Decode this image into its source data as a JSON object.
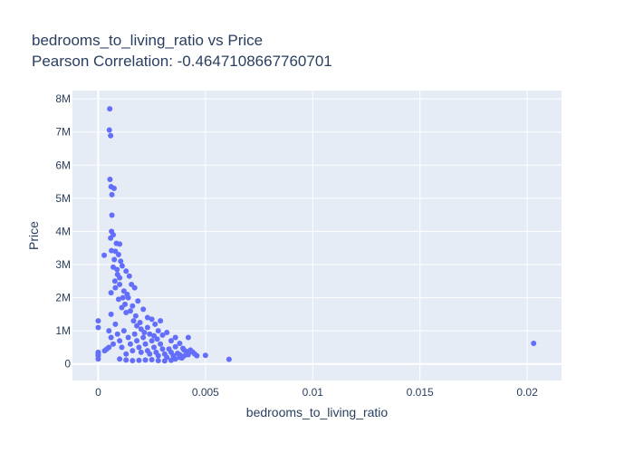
{
  "chart_data": {
    "type": "scatter",
    "title_line1": "bedrooms_to_living_ratio vs Price",
    "title_line2": "Pearson Correlation: -0.4647108667760701",
    "xlabel": "bedrooms_to_living_ratio",
    "ylabel": "Price",
    "xlim": [
      -0.0012,
      0.0216
    ],
    "ylim": [
      -500000,
      8250000
    ],
    "x_ticks": [
      0,
      0.005,
      0.01,
      0.015,
      0.02
    ],
    "x_tick_labels": [
      "0",
      "0.005",
      "0.01",
      "0.015",
      "0.02"
    ],
    "y_ticks": [
      0,
      1000000,
      2000000,
      3000000,
      4000000,
      5000000,
      6000000,
      7000000,
      8000000
    ],
    "y_tick_labels": [
      "0",
      "1M",
      "2M",
      "3M",
      "4M",
      "5M",
      "6M",
      "7M",
      "8M"
    ],
    "grid": true,
    "colors": {
      "marker": "#636efa",
      "plot_bg": "#e5ecf6",
      "grid": "#ffffff",
      "text": "#2a3f5f"
    },
    "series": [
      {
        "values": [
          [
            0.00054,
            7700000
          ],
          [
            0.00052,
            7060000
          ],
          [
            0.00058,
            6890000
          ],
          [
            0.00055,
            5570000
          ],
          [
            0.0006,
            5350000
          ],
          [
            0.00074,
            5300000
          ],
          [
            0.00064,
            5110000
          ],
          [
            0.00064,
            4490000
          ],
          [
            0.00062,
            4000000
          ],
          [
            0.0007,
            3900000
          ],
          [
            0.00058,
            3800000
          ],
          [
            0.00085,
            3640000
          ],
          [
            0.001,
            3620000
          ],
          [
            0.00062,
            3420000
          ],
          [
            0.0008,
            3400000
          ],
          [
            0.00028,
            3280000
          ],
          [
            0.00095,
            3300000
          ],
          [
            0.00075,
            3150000
          ],
          [
            0.00105,
            3100000
          ],
          [
            0.00112,
            2960000
          ],
          [
            0.0007,
            2920000
          ],
          [
            0.00088,
            2850000
          ],
          [
            0.0013,
            2800000
          ],
          [
            0.00145,
            2650000
          ],
          [
            0.001,
            2600000
          ],
          [
            0.00078,
            2500000
          ],
          [
            0.00155,
            2400000
          ],
          [
            0.0017,
            2300000
          ],
          [
            0.0012,
            2200000
          ],
          [
            0.0006,
            2150000
          ],
          [
            0.0014,
            2000000
          ],
          [
            0.00095,
            1950000
          ],
          [
            0.00185,
            1900000
          ],
          [
            0.0016,
            1750000
          ],
          [
            0.0011,
            1700000
          ],
          [
            0.0021,
            1650000
          ],
          [
            0.0013,
            1550000
          ],
          [
            0.0023,
            1400000
          ],
          [
            0.00175,
            1450000
          ],
          [
            0.0025,
            1350000
          ],
          [
            0.0029,
            1300000
          ],
          [
            0.00265,
            1200000
          ],
          [
            0.00195,
            1250000
          ],
          [
            0.0023,
            1100000
          ],
          [
            0.0028,
            1000000
          ],
          [
            0.0032,
            950000
          ],
          [
            0.003,
            870000
          ],
          [
            0.0036,
            800000
          ],
          [
            0.0042,
            800000
          ],
          [
            0.0034,
            700000
          ],
          [
            0.0038,
            620000
          ],
          [
            0.0036,
            520000
          ],
          [
            0.00395,
            470000
          ],
          [
            0.004,
            420000
          ],
          [
            0.0041,
            380000
          ],
          [
            0.0043,
            420000
          ],
          [
            0.0044,
            360000
          ],
          [
            0.0045,
            300000
          ],
          [
            0.0042,
            280000
          ],
          [
            0.004,
            240000
          ],
          [
            0.0038,
            200000
          ],
          [
            0.0046,
            250000
          ],
          [
            0.005,
            260000
          ],
          [
            0.0061,
            140000
          ],
          [
            0.0203,
            620000
          ],
          [
            0.0,
            1300000
          ],
          [
            0.0,
            1100000
          ],
          [
            0.0,
            350000
          ],
          [
            0.0,
            300000
          ],
          [
            0.0,
            250000
          ],
          [
            0.0,
            150000
          ],
          [
            0.0003,
            400000
          ],
          [
            0.0004,
            450000
          ],
          [
            0.0005,
            500000
          ],
          [
            0.0005,
            1000000
          ],
          [
            0.0006,
            1500000
          ],
          [
            0.0006,
            800000
          ],
          [
            0.0007,
            600000
          ],
          [
            0.0008,
            1200000
          ],
          [
            0.0009,
            900000
          ],
          [
            0.001,
            700000
          ],
          [
            0.0011,
            500000
          ],
          [
            0.0012,
            1000000
          ],
          [
            0.0013,
            300000
          ],
          [
            0.0014,
            800000
          ],
          [
            0.0015,
            600000
          ],
          [
            0.0016,
            400000
          ],
          [
            0.0017,
            900000
          ],
          [
            0.0018,
            700000
          ],
          [
            0.0019,
            500000
          ],
          [
            0.002,
            350000
          ],
          [
            0.0021,
            800000
          ],
          [
            0.0022,
            600000
          ],
          [
            0.0023,
            400000
          ],
          [
            0.0024,
            300000
          ],
          [
            0.0025,
            700000
          ],
          [
            0.0026,
            500000
          ],
          [
            0.0027,
            350000
          ],
          [
            0.0028,
            250000
          ],
          [
            0.0029,
            600000
          ],
          [
            0.003,
            450000
          ],
          [
            0.0031,
            300000
          ],
          [
            0.0032,
            200000
          ],
          [
            0.0033,
            450000
          ],
          [
            0.0034,
            350000
          ],
          [
            0.0035,
            250000
          ],
          [
            0.0036,
            150000
          ],
          [
            0.0037,
            320000
          ],
          [
            0.0038,
            280000
          ],
          [
            0.0039,
            180000
          ],
          [
            0.001,
            150000
          ],
          [
            0.0013,
            120000
          ],
          [
            0.0016,
            100000
          ],
          [
            0.0019,
            110000
          ],
          [
            0.0022,
            120000
          ],
          [
            0.0025,
            130000
          ],
          [
            0.0028,
            100000
          ],
          [
            0.0031,
            90000
          ],
          [
            0.0034,
            110000
          ],
          [
            0.0008,
            2300000
          ],
          [
            0.0009,
            2700000
          ],
          [
            0.001,
            2400000
          ],
          [
            0.00115,
            2000000
          ],
          [
            0.00125,
            1800000
          ],
          [
            0.00135,
            2100000
          ],
          [
            0.0015,
            1600000
          ],
          [
            0.00165,
            1300000
          ],
          [
            0.0018,
            1150000
          ],
          [
            0.002,
            1050000
          ],
          [
            0.00215,
            950000
          ],
          [
            0.0024,
            900000
          ],
          [
            0.0026,
            850000
          ],
          [
            0.00275,
            750000
          ]
        ]
      }
    ]
  }
}
